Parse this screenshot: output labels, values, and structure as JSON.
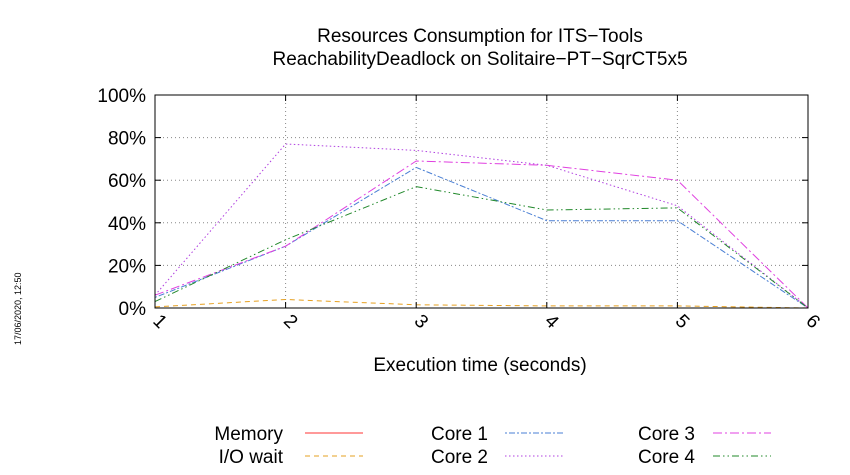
{
  "chart_data": {
    "type": "line",
    "title": "Resources Consumption for ITS−Tools",
    "subtitle": "ReachabilityDeadlock on Solitaire−PT−SqrCT5x5",
    "xlabel": "Execution time (seconds)",
    "ylabel": "",
    "x": [
      1,
      2,
      3,
      4,
      5,
      6
    ],
    "xlim": [
      1,
      6
    ],
    "ylim": [
      0,
      100
    ],
    "x_tick_labels": [
      "1",
      "2",
      "3",
      "4",
      "5",
      "6"
    ],
    "y_tick_labels": [
      "0%",
      "20%",
      "40%",
      "60%",
      "80%",
      "100%"
    ],
    "y_ticks": [
      0,
      20,
      40,
      60,
      80,
      100
    ],
    "grid": true,
    "legend_position": "bottom",
    "series": [
      {
        "name": "Memory",
        "color": "#ff3333",
        "dash": "solid",
        "values": [
          null,
          null,
          null,
          null,
          null,
          null
        ]
      },
      {
        "name": "I/O wait",
        "color": "#e6a020",
        "dash": "dashed",
        "values": [
          0.5,
          4,
          1.5,
          1,
          1,
          0
        ]
      },
      {
        "name": "Core 1",
        "color": "#4a7fd4",
        "dash": "dotted-dash",
        "values": [
          5,
          29,
          66,
          41,
          41,
          0
        ]
      },
      {
        "name": "Core 2",
        "color": "#b040e0",
        "dash": "dotted",
        "values": [
          6,
          77,
          74,
          67,
          48,
          0
        ]
      },
      {
        "name": "Core 3",
        "color": "#e040e0",
        "dash": "dash-dot",
        "values": [
          6,
          29,
          69,
          67,
          60,
          0
        ]
      },
      {
        "name": "Core 4",
        "color": "#20882a",
        "dash": "dash-dot-dot",
        "values": [
          3,
          32,
          57,
          46,
          47,
          0
        ]
      }
    ]
  },
  "timestamp": "17/06/2020, 12:50"
}
